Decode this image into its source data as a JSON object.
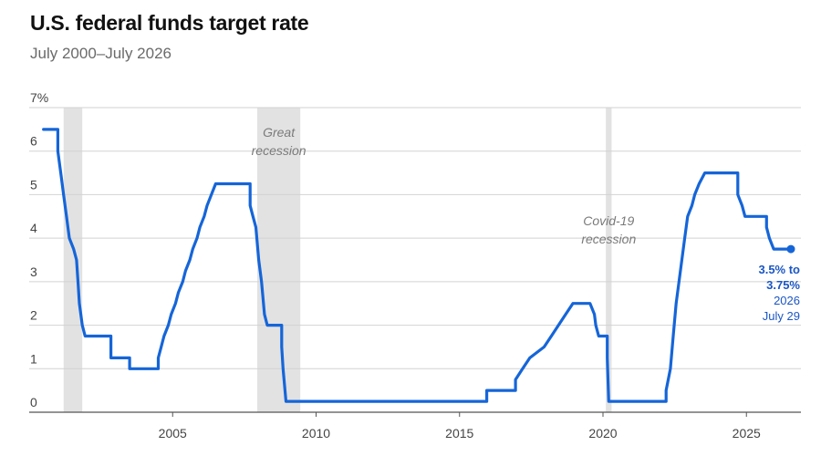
{
  "title": "U.S. federal funds target rate",
  "subtitle": "July 2000–July 2026",
  "colors": {
    "line": "#1565d8",
    "shade": "#e2e2e2",
    "grid": "#d2d2d2",
    "annotation": "#1a56c4"
  },
  "chart_data": {
    "type": "line",
    "title": "U.S. federal funds target rate",
    "subtitle": "July 2000–July 2026",
    "xlabel": "",
    "ylabel": "",
    "xlim": [
      2000.0,
      2026.9
    ],
    "ylim": [
      0,
      7
    ],
    "x_ticks": [
      {
        "value": 2005,
        "label": "2005"
      },
      {
        "value": 2010,
        "label": "2010"
      },
      {
        "value": 2015,
        "label": "2015"
      },
      {
        "value": 2020,
        "label": "2020"
      },
      {
        "value": 2025,
        "label": "2025"
      }
    ],
    "y_ticks": [
      {
        "value": 0,
        "label": "0"
      },
      {
        "value": 1,
        "label": "1"
      },
      {
        "value": 2,
        "label": "2"
      },
      {
        "value": 3,
        "label": "3"
      },
      {
        "value": 4,
        "label": "4"
      },
      {
        "value": 5,
        "label": "5"
      },
      {
        "value": 6,
        "label": "6"
      },
      {
        "value": 7,
        "label": "7%"
      }
    ],
    "grid": true,
    "shaded_periods": [
      {
        "start": 2001.2,
        "end": 2001.85,
        "label": ""
      },
      {
        "start": 2007.95,
        "end": 2009.45,
        "label_lines": [
          "Great",
          "recession"
        ]
      },
      {
        "start": 2020.1,
        "end": 2020.3,
        "label_lines": [
          "Covid-19",
          "recession"
        ]
      }
    ],
    "series": [
      {
        "values": [
          [
            2000.5,
            6.5
          ],
          [
            2001.0,
            6.5
          ],
          [
            2001.0,
            6.0
          ],
          [
            2001.1,
            5.5
          ],
          [
            2001.2,
            5.0
          ],
          [
            2001.3,
            4.5
          ],
          [
            2001.4,
            4.0
          ],
          [
            2001.55,
            3.75
          ],
          [
            2001.65,
            3.5
          ],
          [
            2001.7,
            3.0
          ],
          [
            2001.75,
            2.5
          ],
          [
            2001.85,
            2.0
          ],
          [
            2001.95,
            1.75
          ],
          [
            2002.85,
            1.75
          ],
          [
            2002.85,
            1.25
          ],
          [
            2003.5,
            1.25
          ],
          [
            2003.5,
            1.0
          ],
          [
            2004.5,
            1.0
          ],
          [
            2004.5,
            1.25
          ],
          [
            2004.6,
            1.5
          ],
          [
            2004.7,
            1.75
          ],
          [
            2004.85,
            2.0
          ],
          [
            2004.95,
            2.25
          ],
          [
            2005.1,
            2.5
          ],
          [
            2005.2,
            2.75
          ],
          [
            2005.35,
            3.0
          ],
          [
            2005.45,
            3.25
          ],
          [
            2005.6,
            3.5
          ],
          [
            2005.7,
            3.75
          ],
          [
            2005.85,
            4.0
          ],
          [
            2005.95,
            4.25
          ],
          [
            2006.1,
            4.5
          ],
          [
            2006.2,
            4.75
          ],
          [
            2006.35,
            5.0
          ],
          [
            2006.5,
            5.25
          ],
          [
            2007.7,
            5.25
          ],
          [
            2007.7,
            4.75
          ],
          [
            2007.8,
            4.5
          ],
          [
            2007.9,
            4.25
          ],
          [
            2008.0,
            3.5
          ],
          [
            2008.1,
            3.0
          ],
          [
            2008.2,
            2.25
          ],
          [
            2008.3,
            2.0
          ],
          [
            2008.8,
            2.0
          ],
          [
            2008.8,
            1.5
          ],
          [
            2008.85,
            1.0
          ],
          [
            2008.95,
            0.25
          ],
          [
            2015.95,
            0.25
          ],
          [
            2015.95,
            0.5
          ],
          [
            2016.95,
            0.5
          ],
          [
            2016.95,
            0.75
          ],
          [
            2017.2,
            1.0
          ],
          [
            2017.45,
            1.25
          ],
          [
            2017.95,
            1.5
          ],
          [
            2018.2,
            1.75
          ],
          [
            2018.45,
            2.0
          ],
          [
            2018.7,
            2.25
          ],
          [
            2018.95,
            2.5
          ],
          [
            2019.55,
            2.5
          ],
          [
            2019.7,
            2.25
          ],
          [
            2019.75,
            2.0
          ],
          [
            2019.85,
            1.75
          ],
          [
            2020.15,
            1.75
          ],
          [
            2020.15,
            1.25
          ],
          [
            2020.2,
            0.25
          ],
          [
            2022.2,
            0.25
          ],
          [
            2022.2,
            0.5
          ],
          [
            2022.35,
            1.0
          ],
          [
            2022.45,
            1.75
          ],
          [
            2022.55,
            2.5
          ],
          [
            2022.7,
            3.25
          ],
          [
            2022.85,
            4.0
          ],
          [
            2022.95,
            4.5
          ],
          [
            2023.1,
            4.75
          ],
          [
            2023.2,
            5.0
          ],
          [
            2023.35,
            5.25
          ],
          [
            2023.55,
            5.5
          ],
          [
            2024.7,
            5.5
          ],
          [
            2024.7,
            5.0
          ],
          [
            2024.85,
            4.75
          ],
          [
            2024.95,
            4.5
          ],
          [
            2025.7,
            4.5
          ],
          [
            2025.7,
            4.25
          ],
          [
            2025.8,
            4.0
          ],
          [
            2025.95,
            3.75
          ],
          [
            2026.55,
            3.75
          ]
        ]
      }
    ],
    "annotation": {
      "x": 2026.55,
      "y": 3.75,
      "bold_lines": [
        "3.5% to",
        "3.75%"
      ],
      "lines": [
        "2026",
        "July 29"
      ]
    }
  }
}
